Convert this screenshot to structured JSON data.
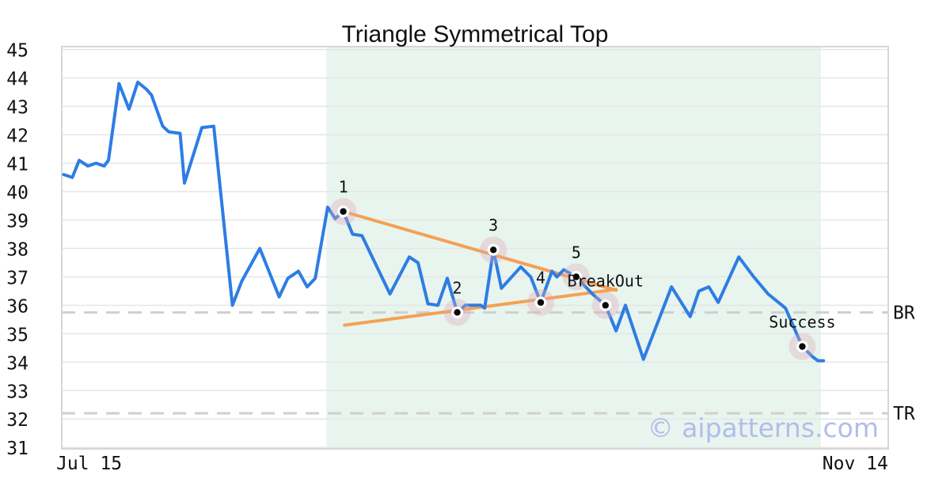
{
  "title": {
    "text": "Triangle Symmetrical Top"
  },
  "watermark": {
    "text": "© aipatterns.com",
    "color": "#b3bce9"
  },
  "chart_data": {
    "type": "line",
    "title": "Triangle Symmetrical Top",
    "x_unit": "days since Jul 15",
    "xlim": [
      -0.3,
      132.4
    ],
    "ylim": [
      30.95,
      45.1
    ],
    "yticks": [
      31,
      32,
      33,
      34,
      35,
      36,
      37,
      38,
      39,
      40,
      41,
      42,
      43,
      44,
      45
    ],
    "xticks": [
      {
        "label": "Jul 15",
        "x": 4.1
      },
      {
        "label": "Nov 14",
        "x": 127.1
      }
    ],
    "grid": "horizontal",
    "legend": "none",
    "shaded_region": {
      "x0": 42.2,
      "x1": 121.6,
      "color": "#e8f4ee"
    },
    "levels": [
      {
        "label": "BR",
        "value": 35.75
      },
      {
        "label": "TR",
        "value": 32.2
      }
    ],
    "trendlines": [
      {
        "name": "upper-resistance",
        "from": [
          44.9,
          39.3
        ],
        "to": [
          88.7,
          36.53
        ]
      },
      {
        "name": "lower-support",
        "from": [
          45.1,
          35.3
        ],
        "to": [
          88.7,
          36.56
        ]
      }
    ],
    "markers": [
      {
        "label": "1",
        "x": 44.9,
        "y": 39.3
      },
      {
        "label": "2",
        "x": 63.2,
        "y": 35.75
      },
      {
        "label": "3",
        "x": 69.0,
        "y": 37.95
      },
      {
        "label": "4",
        "x": 76.6,
        "y": 36.1
      },
      {
        "label": "5",
        "x": 82.3,
        "y": 37.0
      },
      {
        "label": "BreakOut",
        "x": 87.0,
        "y": 36.0
      },
      {
        "label": "Success",
        "x": 118.6,
        "y": 34.55
      }
    ],
    "series": [
      {
        "name": "price",
        "color": "#2d7de4",
        "points": [
          [
            0,
            40.6
          ],
          [
            1.4,
            40.5
          ],
          [
            2.5,
            41.1
          ],
          [
            3.9,
            40.9
          ],
          [
            5.2,
            41.0
          ],
          [
            6.5,
            40.9
          ],
          [
            7.2,
            41.1
          ],
          [
            8.9,
            43.8
          ],
          [
            10.5,
            42.9
          ],
          [
            11.9,
            43.85
          ],
          [
            13.3,
            43.6
          ],
          [
            14.1,
            43.4
          ],
          [
            15.9,
            42.3
          ],
          [
            16.9,
            42.1
          ],
          [
            18.7,
            42.05
          ],
          [
            19.4,
            40.3
          ],
          [
            22.2,
            42.25
          ],
          [
            24.1,
            42.3
          ],
          [
            27.1,
            36.0
          ],
          [
            28.6,
            36.85
          ],
          [
            31.5,
            38.0
          ],
          [
            34.6,
            36.3
          ],
          [
            36.0,
            36.95
          ],
          [
            37.7,
            37.2
          ],
          [
            39.1,
            36.65
          ],
          [
            40.4,
            36.95
          ],
          [
            42.4,
            39.45
          ],
          [
            43.6,
            39.05
          ],
          [
            44.9,
            39.3
          ],
          [
            46.4,
            38.5
          ],
          [
            47.9,
            38.45
          ],
          [
            52.4,
            36.4
          ],
          [
            55.5,
            37.7
          ],
          [
            56.9,
            37.5
          ],
          [
            58.5,
            36.05
          ],
          [
            60.1,
            36.0
          ],
          [
            61.6,
            36.95
          ],
          [
            63.2,
            35.75
          ],
          [
            64.5,
            36.0
          ],
          [
            67.0,
            36.0
          ],
          [
            67.6,
            35.9
          ],
          [
            69.0,
            37.95
          ],
          [
            70.3,
            36.6
          ],
          [
            73.4,
            37.35
          ],
          [
            75.0,
            37.0
          ],
          [
            76.6,
            36.1
          ],
          [
            78.4,
            37.2
          ],
          [
            79.2,
            37.0
          ],
          [
            80.3,
            37.25
          ],
          [
            82.3,
            37.0
          ],
          [
            84.9,
            36.4
          ],
          [
            87.0,
            36.0
          ],
          [
            88.7,
            35.1
          ],
          [
            90.2,
            36.0
          ],
          [
            93.1,
            34.1
          ],
          [
            97.6,
            36.65
          ],
          [
            100.6,
            35.6
          ],
          [
            102.0,
            36.5
          ],
          [
            103.6,
            36.65
          ],
          [
            105.1,
            36.1
          ],
          [
            108.4,
            37.7
          ],
          [
            110.8,
            37.0
          ],
          [
            113.1,
            36.4
          ],
          [
            115.9,
            35.9
          ],
          [
            118.6,
            34.55
          ],
          [
            120.2,
            34.2
          ],
          [
            121.1,
            34.05
          ],
          [
            122.0,
            34.05
          ]
        ]
      }
    ],
    "colors": {
      "line": "#2d7de4",
      "trendline": "#f5a054",
      "marker_dot": "#0a0a0a",
      "marker_ring": "#ffffff",
      "marker_halo": "#dda8b8",
      "grid": "#e6e6e6",
      "frame": "#d6d6d6",
      "level_dash": "#cfcfcf",
      "text": "#111111"
    }
  }
}
